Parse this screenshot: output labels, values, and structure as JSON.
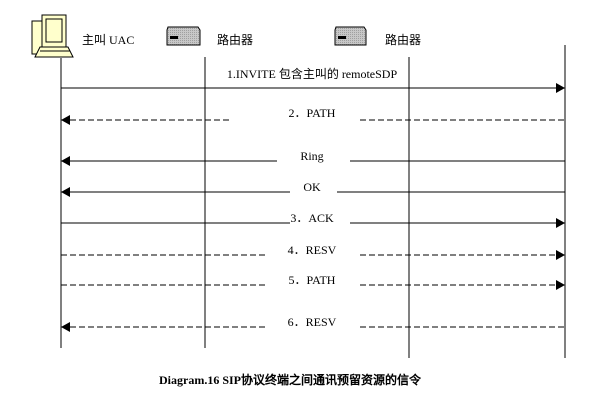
{
  "participants": [
    {
      "label": "主叫 UAC",
      "icon": "computer-icon"
    },
    {
      "label": "路由器",
      "icon": "router-icon"
    },
    {
      "label": "路由器",
      "icon": "router-icon"
    },
    {
      "label": "",
      "icon": ""
    }
  ],
  "messages": [
    {
      "label": "1.INVITE 包含主叫的 remoteSDP",
      "direction": "right",
      "style": "solid"
    },
    {
      "label": "2．PATH",
      "direction": "left",
      "style": "dashed"
    },
    {
      "label": "Ring",
      "direction": "left",
      "style": "solid"
    },
    {
      "label": "OK",
      "direction": "left",
      "style": "solid"
    },
    {
      "label": "3．ACK",
      "direction": "right",
      "style": "solid"
    },
    {
      "label": "4．RESV",
      "direction": "right",
      "style": "dashed"
    },
    {
      "label": "5．PATH",
      "direction": "right",
      "style": "dashed"
    },
    {
      "label": "6．RESV",
      "direction": "left",
      "style": "dashed"
    }
  ],
  "caption": "Diagram.16 SIP协议终端之间通讯预留资源的信令"
}
